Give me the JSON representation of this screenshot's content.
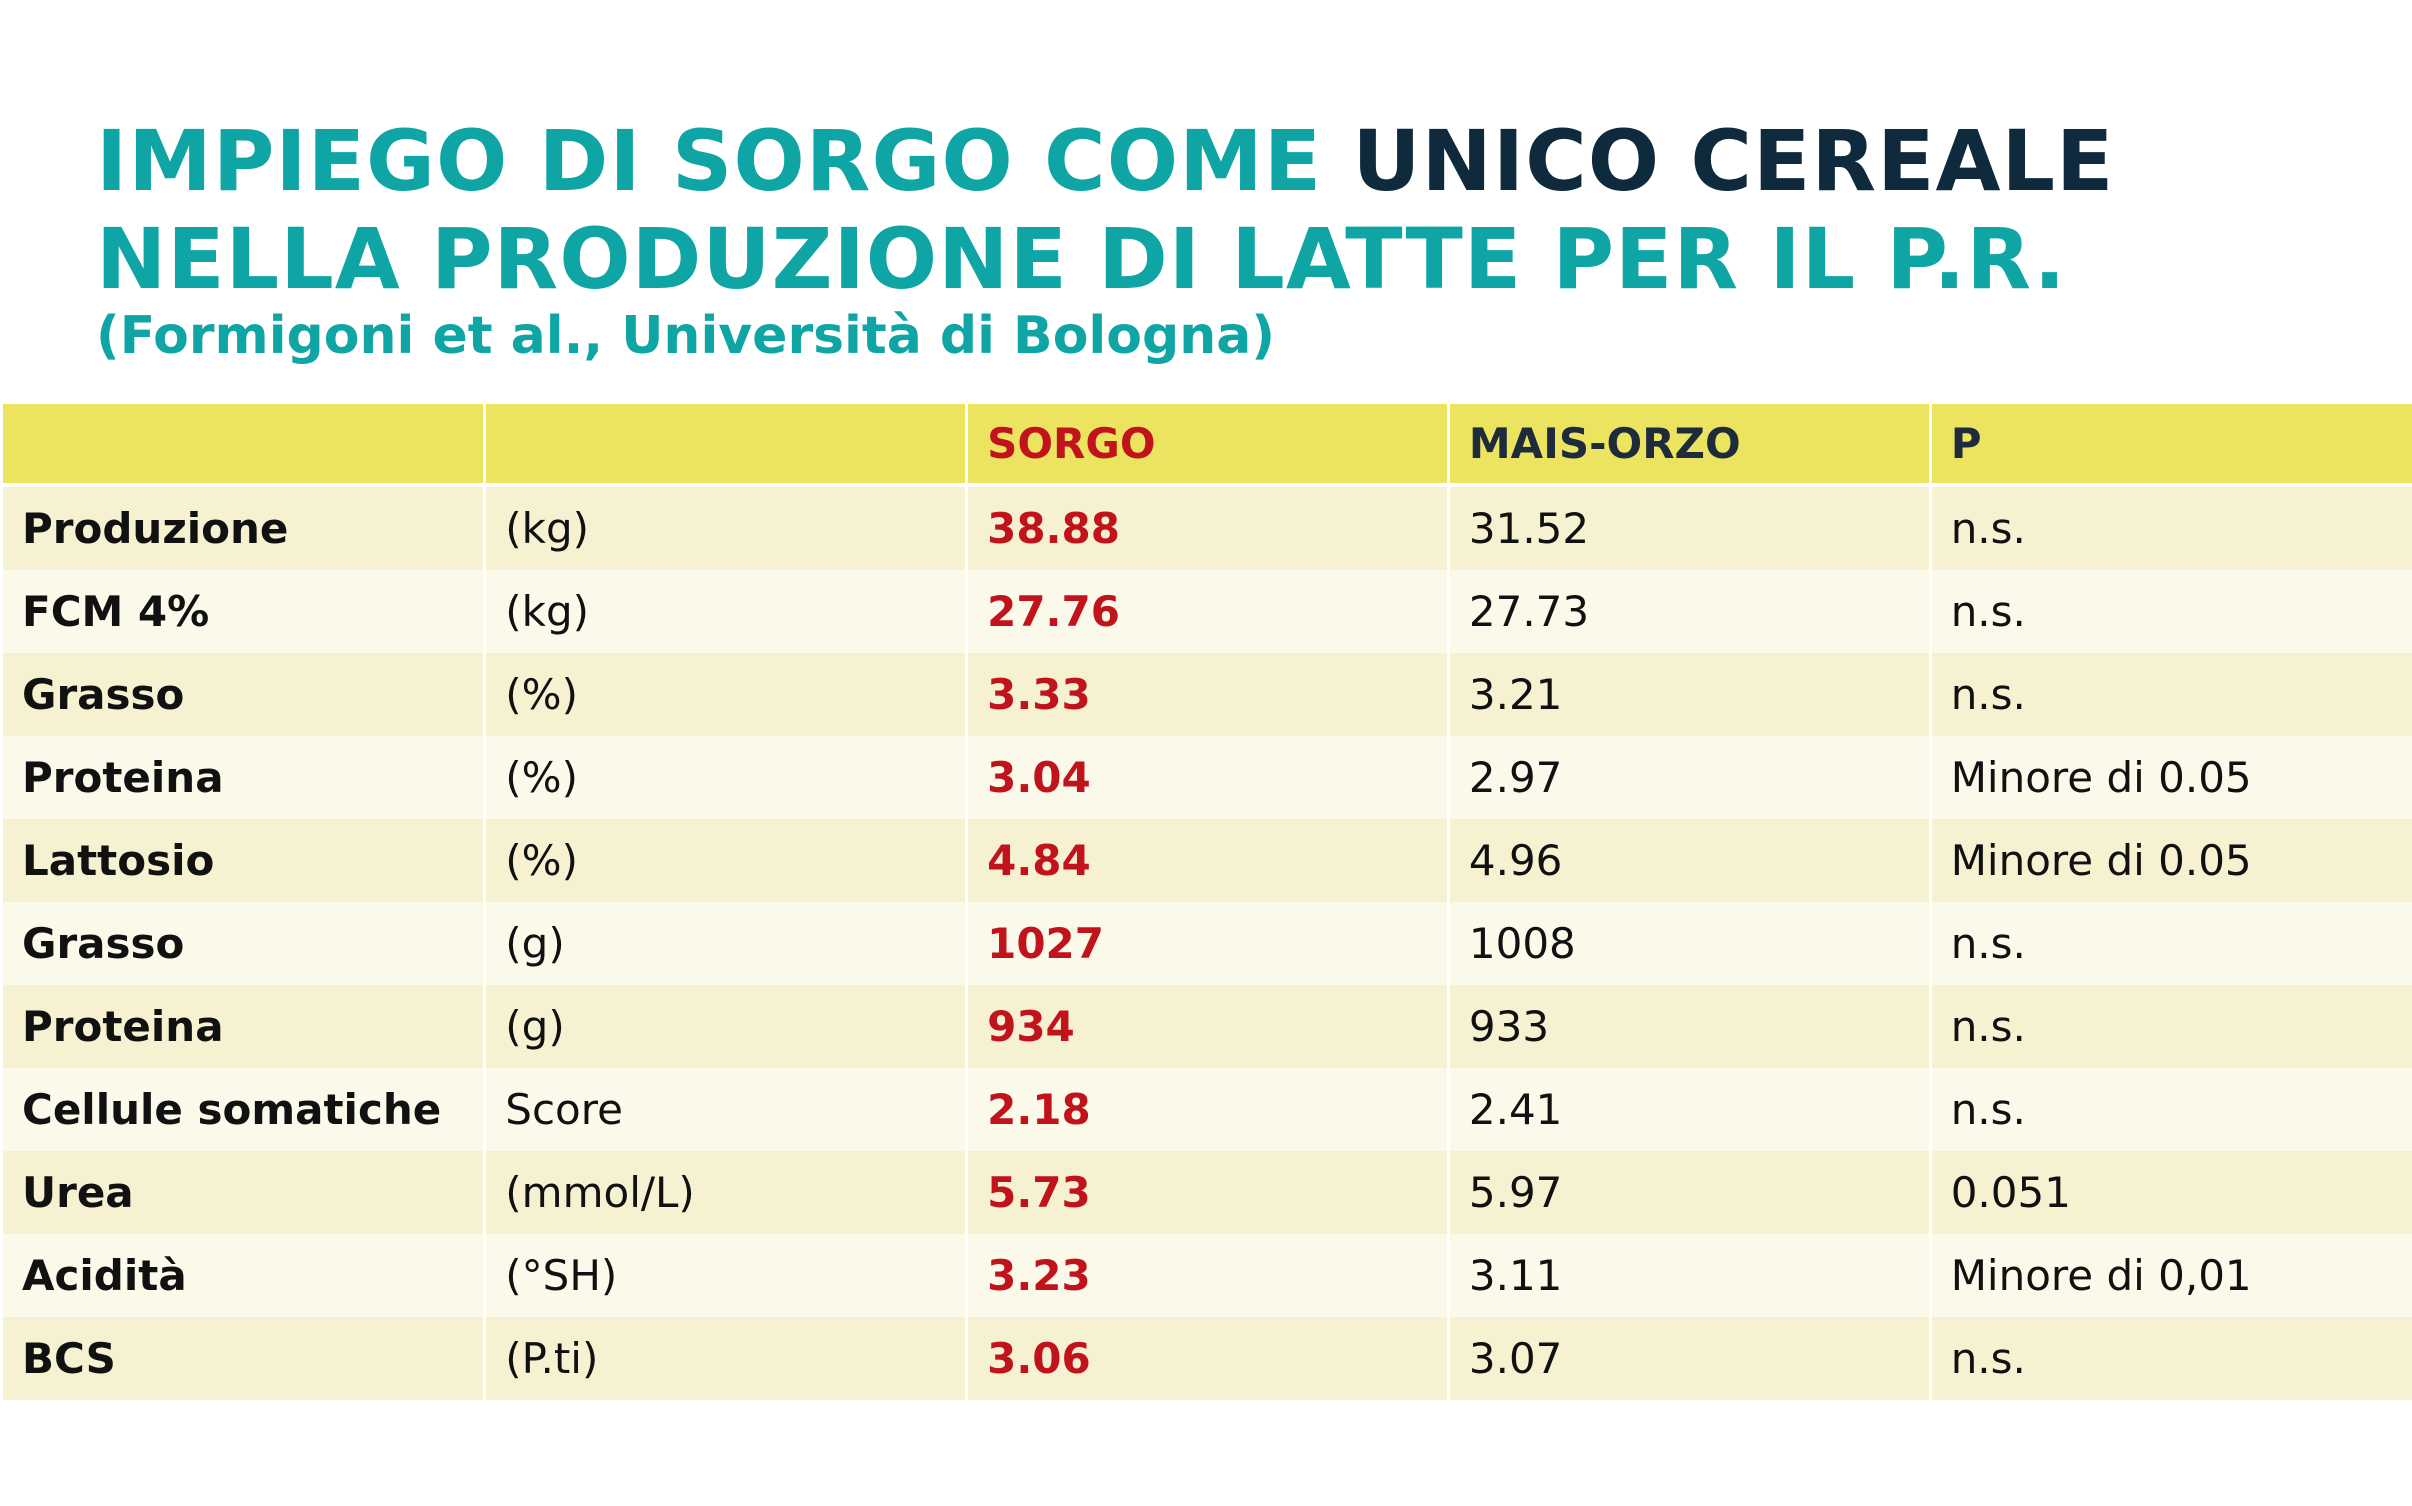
{
  "title": {
    "line1_teal": "IMPIEGO DI SORGO COME ",
    "line1_dark": "UNICO CEREALE",
    "line2": "NELLA PRODUZIONE DI LATTE PER IL P.R.",
    "subtitle": "(Formigoni et al., Università di Bologna)"
  },
  "colors": {
    "teal": "#10a5a5",
    "dark": "#0e2a3c",
    "header_bg": "#ece461",
    "highlight_red": "#c0131b"
  },
  "table": {
    "headers": [
      "",
      "",
      "SORGO",
      "MAIS-ORZO",
      "P"
    ],
    "rows": [
      {
        "label": "Produzione",
        "unit": "(kg)",
        "sorgo": "38.88",
        "mais_orzo": "31.52",
        "p": "n.s."
      },
      {
        "label": "FCM 4%",
        "unit": "(kg)",
        "sorgo": "27.76",
        "mais_orzo": "27.73",
        "p": "n.s."
      },
      {
        "label": "Grasso",
        "unit": "(%)",
        "sorgo": "3.33",
        "mais_orzo": "3.21",
        "p": "n.s."
      },
      {
        "label": "Proteina",
        "unit": "(%)",
        "sorgo": "3.04",
        "mais_orzo": "2.97",
        "p": "Minore di 0.05"
      },
      {
        "label": "Lattosio",
        "unit": "(%)",
        "sorgo": "4.84",
        "mais_orzo": "4.96",
        "p": "Minore di 0.05"
      },
      {
        "label": "Grasso",
        "unit": "(g)",
        "sorgo": "1027",
        "mais_orzo": "1008",
        "p": "n.s."
      },
      {
        "label": "Proteina",
        "unit": "(g)",
        "sorgo": "934",
        "mais_orzo": "933",
        "p": "n.s."
      },
      {
        "label": "Cellule somatiche",
        "unit": "Score",
        "sorgo": "2.18",
        "mais_orzo": "2.41",
        "p": "n.s."
      },
      {
        "label": "Urea",
        "unit": "(mmol/L)",
        "sorgo": "5.73",
        "mais_orzo": "5.97",
        "p": "0.051"
      },
      {
        "label": "Acidità",
        "unit": "(°SH)",
        "sorgo": "3.23",
        "mais_orzo": "3.11",
        "p": "Minore di 0,01"
      },
      {
        "label": "BCS",
        "unit": "(P.ti)",
        "sorgo": "3.06",
        "mais_orzo": "3.07",
        "p": "n.s."
      }
    ]
  }
}
